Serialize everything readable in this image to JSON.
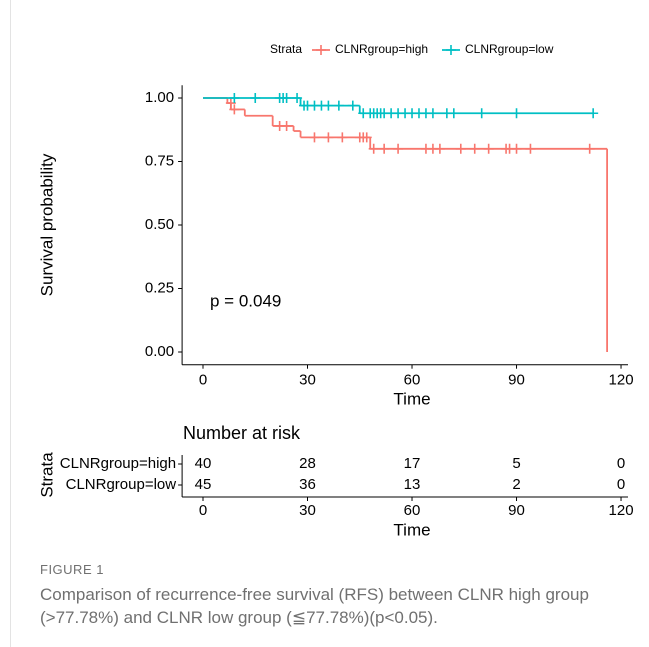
{
  "chart_data": {
    "type": "km",
    "legend_title": "Strata",
    "ylabel": "Survival probability",
    "xlabel": "Time",
    "annotation": "p = 0.049",
    "xlim": [
      -6,
      122
    ],
    "ylim": [
      -0.05,
      1.05
    ],
    "xticks": [
      0,
      30,
      60,
      90,
      120
    ],
    "yticks": [
      {
        "value": 0,
        "label": "0.00"
      },
      {
        "value": 0.25,
        "label": "0.25"
      },
      {
        "value": 0.5,
        "label": "0.50"
      },
      {
        "value": 0.75,
        "label": "0.75"
      },
      {
        "value": 1,
        "label": "1.00"
      }
    ],
    "series": [
      {
        "name": "CLNRgroup=high",
        "color": "#F8766D",
        "x": [
          0,
          7,
          8,
          12,
          20,
          26,
          28,
          48,
          116
        ],
        "values": [
          1,
          0.98,
          0.955,
          0.93,
          0.89,
          0.87,
          0.845,
          0.8,
          0
        ],
        "censor_x": [
          8,
          9,
          22,
          24,
          32,
          36,
          40,
          45,
          46,
          47,
          49,
          52,
          56,
          64,
          66,
          68,
          74,
          78,
          82,
          87,
          88,
          90,
          94,
          111
        ],
        "censor_values": [
          0.98,
          0.955,
          0.89,
          0.89,
          0.845,
          0.845,
          0.845,
          0.845,
          0.845,
          0.845,
          0.8,
          0.8,
          0.8,
          0.8,
          0.8,
          0.8,
          0.8,
          0.8,
          0.8,
          0.8,
          0.8,
          0.8,
          0.8,
          0.8
        ]
      },
      {
        "name": "CLNRgroup=low",
        "color": "#00BFC4",
        "x": [
          0,
          28,
          45
        ],
        "values": [
          1,
          0.97,
          0.94
        ],
        "censor_x": [
          9,
          15,
          22,
          23,
          24,
          27,
          29,
          30,
          32,
          34,
          36,
          39,
          43,
          46,
          48,
          49,
          50,
          51,
          52,
          54,
          56,
          58,
          60,
          62,
          64,
          66,
          70,
          72,
          80,
          90,
          112
        ],
        "censor_values": [
          1,
          1,
          1,
          1,
          1,
          1,
          0.97,
          0.97,
          0.97,
          0.97,
          0.97,
          0.97,
          0.97,
          0.94,
          0.94,
          0.94,
          0.94,
          0.94,
          0.94,
          0.94,
          0.94,
          0.94,
          0.94,
          0.94,
          0.94,
          0.94,
          0.94,
          0.94,
          0.94,
          0.94,
          0.94
        ]
      }
    ],
    "risk_table": {
      "title": "Number at risk",
      "ylabel": "Strata",
      "xlabel": "Time",
      "times": [
        0,
        30,
        60,
        90,
        120
      ],
      "rows": [
        {
          "name": "CLNRgroup=high",
          "color": "#F8766D",
          "values": [
            40,
            28,
            17,
            5,
            0
          ]
        },
        {
          "name": "CLNRgroup=low",
          "color": "#00BFC4",
          "values": [
            45,
            36,
            13,
            2,
            0
          ]
        }
      ]
    }
  },
  "caption": {
    "label": "FIGURE 1",
    "text": "Comparison of recurrence-free survival (RFS) between CLNR high group (>77.78%) and CLNR low group (≦77.78%)(p<0.05)."
  }
}
